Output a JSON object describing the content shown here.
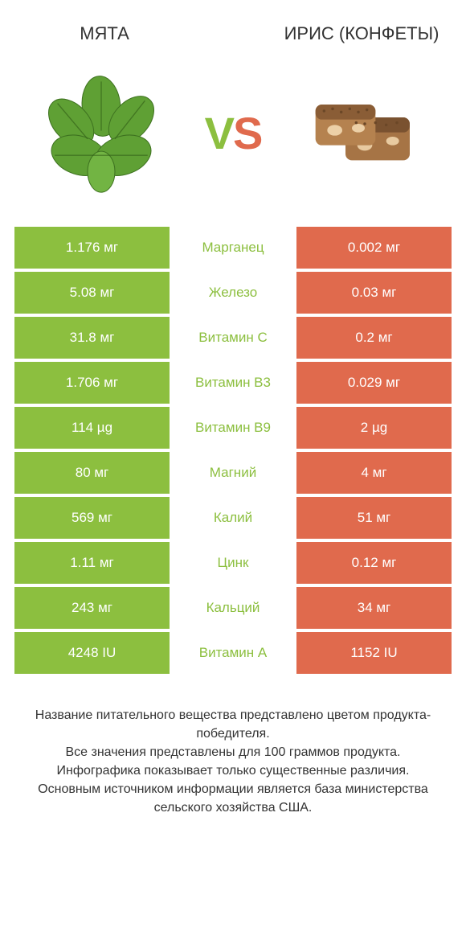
{
  "colors": {
    "left_winner": "#8cbf3f",
    "right_winner": "#e06a4d",
    "left_loser": "#8cbf3f",
    "right_loser": "#e06a4d",
    "label_winner_left": "#8cbf3f",
    "label_winner_right": "#e06a4d"
  },
  "header": {
    "left_title": "МЯТА",
    "right_title": "ИРИС (КОНФЕТЫ)",
    "vs_v": "V",
    "vs_s": "S"
  },
  "rows": [
    {
      "label": "Марганец",
      "left": "1.176 мг",
      "right": "0.002 мг",
      "winner": "left"
    },
    {
      "label": "Железо",
      "left": "5.08 мг",
      "right": "0.03 мг",
      "winner": "left"
    },
    {
      "label": "Витамин C",
      "left": "31.8 мг",
      "right": "0.2 мг",
      "winner": "left"
    },
    {
      "label": "Витамин B3",
      "left": "1.706 мг",
      "right": "0.029 мг",
      "winner": "left"
    },
    {
      "label": "Витамин B9",
      "left": "114 µg",
      "right": "2 µg",
      "winner": "left"
    },
    {
      "label": "Магний",
      "left": "80 мг",
      "right": "4 мг",
      "winner": "left"
    },
    {
      "label": "Калий",
      "left": "569 мг",
      "right": "51 мг",
      "winner": "left"
    },
    {
      "label": "Цинк",
      "left": "1.11 мг",
      "right": "0.12 мг",
      "winner": "left"
    },
    {
      "label": "Кальций",
      "left": "243 мг",
      "right": "34 мг",
      "winner": "left"
    },
    {
      "label": "Витамин A",
      "left": "4248 IU",
      "right": "1152 IU",
      "winner": "left"
    }
  ],
  "footer": {
    "line1": "Название питательного вещества представлено цветом продукта-победителя.",
    "line2": "Все значения представлены для 100 граммов продукта.",
    "line3": "Инфографика показывает только существенные различия.",
    "line4": "Основным источником информации является база министерства сельского хозяйства США."
  }
}
